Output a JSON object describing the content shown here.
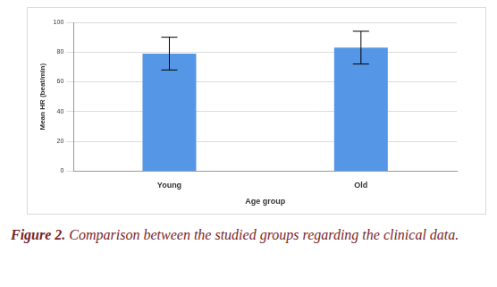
{
  "chart_data": {
    "type": "bar",
    "categories": [
      "Young",
      "Old"
    ],
    "values": [
      79,
      83
    ],
    "errors": [
      11,
      11
    ],
    "color": "#5597e6",
    "x_label": "Age group",
    "y_label": "Mean HR (beat/min)",
    "ylim": [
      0,
      100
    ],
    "yticks": [
      0,
      20,
      40,
      60,
      80,
      100
    ],
    "grid": true
  },
  "caption": "Figure 2. Comparison between the studied groups regarding the clinical data."
}
